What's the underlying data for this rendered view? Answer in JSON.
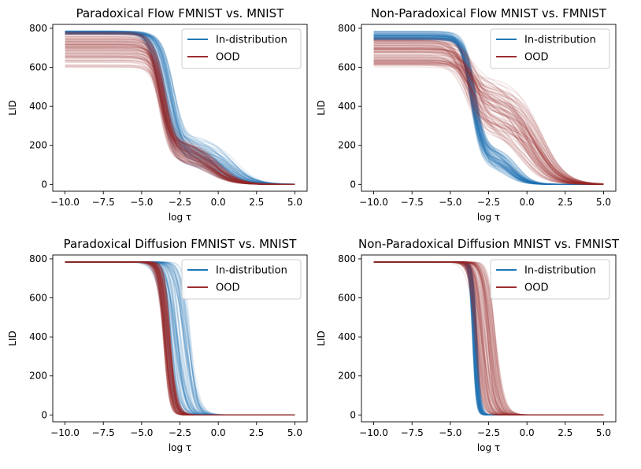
{
  "colors": {
    "in_distribution": "#1f77b4",
    "ood": "#9b2d30"
  },
  "chart_data": [
    {
      "type": "line",
      "title": "Paradoxical Flow FMNIST vs. MNIST",
      "xlabel": "log τ",
      "ylabel": "LID",
      "xlim": [
        -10.8,
        5.8
      ],
      "ylim": [
        -35,
        820
      ],
      "xticks": [
        -10.0,
        -7.5,
        -5.0,
        -2.5,
        0.0,
        2.5,
        5.0
      ],
      "xtick_labels": [
        "−10.0",
        "−7.5",
        "−5.0",
        "−2.5",
        "0.0",
        "2.5",
        "5.0"
      ],
      "yticks": [
        0,
        200,
        400,
        600,
        800
      ],
      "ytick_labels": [
        "0",
        "200",
        "400",
        "600",
        "800"
      ],
      "legend_position": "top-right",
      "series": [
        {
          "name": "In-distribution",
          "color": "#1f77b4",
          "n_curves": 90,
          "representative": {
            "x": [
              -10,
              -5,
              -4,
              -3,
              -2,
              -1,
              0,
              1,
              2.5,
              5
            ],
            "y": [
              784,
              780,
              700,
              430,
              260,
              200,
              120,
              60,
              25,
              5
            ]
          }
        },
        {
          "name": "OOD",
          "color": "#9b2d30",
          "n_curves": 110,
          "representative": {
            "x": [
              -10,
              -5,
              -4,
              -3,
              -2,
              -1,
              0,
              1,
              2.5,
              5
            ],
            "y": [
              700,
              690,
              600,
              280,
              190,
              170,
              100,
              50,
              20,
              4
            ]
          }
        }
      ]
    },
    {
      "type": "line",
      "title": "Non-Paradoxical Flow MNIST vs. FMNIST",
      "xlabel": "log τ",
      "ylabel": "LID",
      "xlim": [
        -10.8,
        5.8
      ],
      "ylim": [
        -35,
        820
      ],
      "xticks": [
        -10.0,
        -7.5,
        -5.0,
        -2.5,
        0.0,
        2.5,
        5.0
      ],
      "xtick_labels": [
        "−10.0",
        "−7.5",
        "−5.0",
        "−2.5",
        "0.0",
        "2.5",
        "5.0"
      ],
      "yticks": [
        0,
        200,
        400,
        600,
        800
      ],
      "ytick_labels": [
        "0",
        "200",
        "400",
        "600",
        "800"
      ],
      "legend_position": "top-right",
      "series": [
        {
          "name": "In-distribution",
          "color": "#1f77b4",
          "n_curves": 90,
          "representative": {
            "x": [
              -10,
              -5,
              -4,
              -3,
              -2,
              -1,
              0,
              1,
              2.5,
              5
            ],
            "y": [
              770,
              760,
              650,
              230,
              170,
              150,
              70,
              30,
              10,
              2
            ]
          }
        },
        {
          "name": "OOD",
          "color": "#9b2d30",
          "n_curves": 110,
          "representative": {
            "x": [
              -10,
              -5,
              -4,
              -3,
              -2,
              -1,
              0,
              1,
              2.5,
              5
            ],
            "y": [
              720,
              710,
              640,
              450,
              400,
              370,
              250,
              120,
              50,
              12
            ]
          }
        }
      ]
    },
    {
      "type": "line",
      "title": "Paradoxical Diffusion FMNIST vs. MNIST",
      "xlabel": "log τ",
      "ylabel": "LID",
      "xlim": [
        -10.8,
        5.8
      ],
      "ylim": [
        -35,
        820
      ],
      "xticks": [
        -10.0,
        -7.5,
        -5.0,
        -2.5,
        0.0,
        2.5,
        5.0
      ],
      "xtick_labels": [
        "−10.0",
        "−7.5",
        "−5.0",
        "−2.5",
        "0.0",
        "2.5",
        "5.0"
      ],
      "yticks": [
        0,
        200,
        400,
        600,
        800
      ],
      "ytick_labels": [
        "0",
        "200",
        "400",
        "600",
        "800"
      ],
      "legend_position": "top-right",
      "series": [
        {
          "name": "In-distribution",
          "color": "#1f77b4",
          "n_curves": 90,
          "representative": {
            "x": [
              -10,
              -4,
              -3.5,
              -3,
              -2.5,
              -2,
              -1,
              0,
              5
            ],
            "y": [
              784,
              780,
              600,
              200,
              90,
              40,
              5,
              0,
              0
            ]
          }
        },
        {
          "name": "OOD",
          "color": "#9b2d30",
          "n_curves": 110,
          "representative": {
            "x": [
              -10,
              -4,
              -3.5,
              -3,
              -2.5,
              -2,
              -1,
              0,
              5
            ],
            "y": [
              784,
              780,
              420,
              90,
              40,
              15,
              2,
              0,
              0
            ]
          }
        }
      ]
    },
    {
      "type": "line",
      "title": "Non-Paradoxical Diffusion MNIST vs. FMNIST",
      "xlabel": "log τ",
      "ylabel": "LID",
      "xlim": [
        -10.8,
        5.8
      ],
      "ylim": [
        -35,
        820
      ],
      "xticks": [
        -10.0,
        -7.5,
        -5.0,
        -2.5,
        0.0,
        2.5,
        5.0
      ],
      "xtick_labels": [
        "−10.0",
        "−7.5",
        "−5.0",
        "−2.5",
        "0.0",
        "2.5",
        "5.0"
      ],
      "yticks": [
        0,
        200,
        400,
        600,
        800
      ],
      "ytick_labels": [
        "0",
        "200",
        "400",
        "600",
        "800"
      ],
      "legend_position": "top-right",
      "series": [
        {
          "name": "In-distribution",
          "color": "#1f77b4",
          "n_curves": 90,
          "representative": {
            "x": [
              -10,
              -4,
              -3.5,
              -3,
              -2.5,
              -2,
              -1,
              0,
              5
            ],
            "y": [
              784,
              780,
              300,
              40,
              10,
              3,
              0,
              0,
              0
            ]
          }
        },
        {
          "name": "OOD",
          "color": "#9b2d30",
          "n_curves": 110,
          "representative": {
            "x": [
              -10,
              -4,
              -3.5,
              -3,
              -2.5,
              -2,
              -1,
              0,
              5
            ],
            "y": [
              784,
              780,
              700,
              450,
              200,
              60,
              8,
              0,
              0
            ]
          }
        }
      ]
    }
  ]
}
